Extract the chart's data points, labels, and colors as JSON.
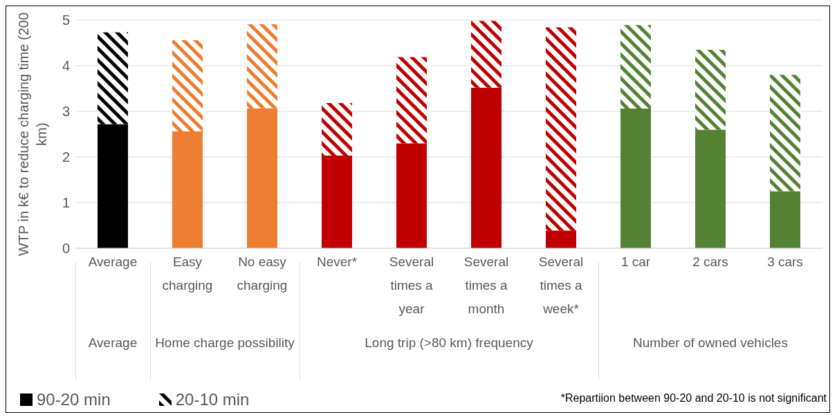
{
  "chart_data": {
    "type": "bar",
    "stacked": true,
    "ylabel": "WTP in k€ to reduce charging time (200 km)",
    "categories": [
      "Average",
      "Easy charging",
      "No easy charging",
      "Never*",
      "Several times a year",
      "Several times a month",
      "Several times a week*",
      "1 car",
      "2 cars",
      "3 cars"
    ],
    "series": [
      {
        "name": "90-20 min",
        "color": "#000000",
        "colors": [
          "#000000",
          "#ed7d31",
          "#ed7d31",
          "#c00000",
          "#c00000",
          "#c00000",
          "#c00000",
          "#548235",
          "#548235",
          "#548235"
        ],
        "values": [
          2.72,
          2.56,
          3.07,
          2.03,
          2.3,
          3.52,
          0.39,
          3.06,
          2.6,
          1.25
        ]
      },
      {
        "name": "20-10 min",
        "color": "#000000",
        "colors": [
          "#000000",
          "#ed7d31",
          "#ed7d31",
          "#c00000",
          "#c00000",
          "#c00000",
          "#c00000",
          "#548235",
          "#548235",
          "#548235"
        ],
        "values": [
          2.01,
          2.0,
          1.84,
          1.15,
          1.89,
          1.46,
          4.45,
          1.83,
          1.75,
          2.55
        ]
      }
    ],
    "annotations": [
      "Average",
      "Home charge possibility",
      "Long trip (>80 km) frequency",
      "Number of owned vehicles",
      "*Repartiion between 90-20 and 20-10 is not significant"
    ],
    "ylim": [
      0,
      5
    ],
    "yticks": [
      0,
      1,
      2,
      3,
      4,
      5
    ],
    "grid": "y",
    "legend": "bottom left"
  }
}
